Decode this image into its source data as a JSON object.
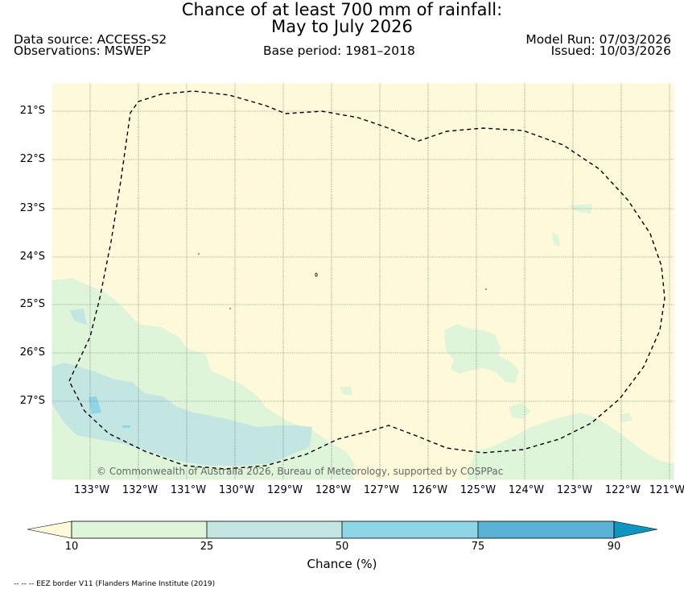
{
  "title": {
    "line1": "Chance of at least 700 mm of rainfall:",
    "line2": "May to July 2026"
  },
  "meta": {
    "data_source": "Data source: ACCESS-S2",
    "observations": "Observations: MSWEP",
    "base_period": "Base period: 1981–2018",
    "model_run": "Model Run: 07/03/2026",
    "issued": "Issued: 10/03/2026"
  },
  "map": {
    "lat_labels": [
      "21°S",
      "22°S",
      "23°S",
      "24°S",
      "25°S",
      "26°S",
      "27°S"
    ],
    "lon_labels": [
      "133°W",
      "132°W",
      "131°W",
      "130°W",
      "129°W",
      "128°W",
      "127°W",
      "126°W",
      "125°W",
      "124°W",
      "123°W",
      "122°W",
      "121°W"
    ],
    "copyright": "© Commonwealth of Australia 2026, Bureau of Meteorology, supported by COSPPac"
  },
  "colorbar": {
    "title": "Chance (%)",
    "ticks": [
      "10",
      "25",
      "50",
      "75",
      "90"
    ],
    "colors": [
      "#fff9db",
      "#dff5da",
      "#c3e6e3",
      "#8fd5e8",
      "#5ab3d5",
      "#0e95c0"
    ]
  },
  "colors": {
    "background_band": "#fff9db",
    "band_10_25": "#dff5da",
    "band_25_50": "#c3e6e3",
    "band_50_75": "#8fd5e8"
  },
  "footnote": "-- -- -- EEZ border V11 (Flanders Marine Institute (2019)"
}
